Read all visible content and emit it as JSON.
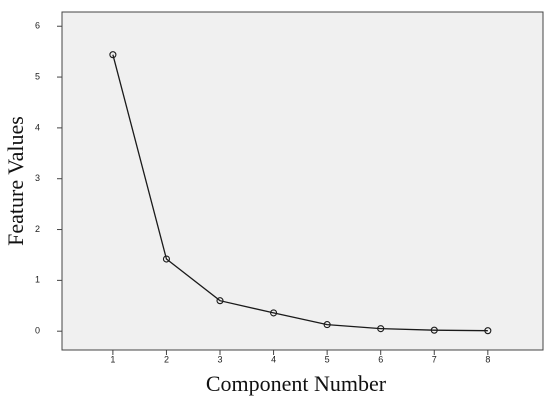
{
  "chart_data": {
    "type": "line",
    "x_label": "Component Number",
    "y_label": "Feature Values",
    "x": [
      1,
      2,
      3,
      4,
      5,
      6,
      7,
      8
    ],
    "values": [
      5.44,
      1.42,
      0.6,
      0.36,
      0.13,
      0.05,
      0.02,
      0.01
    ],
    "color": "#1a1a1a",
    "xlim": [
      0.05,
      9.03
    ],
    "xticks": [
      1,
      2,
      3,
      4,
      5,
      6,
      7,
      8
    ],
    "ylim": [
      -0.37,
      6.28
    ],
    "yticks": [
      0,
      1,
      2,
      3,
      4,
      5,
      6
    ],
    "background": "#f0f0f0"
  }
}
